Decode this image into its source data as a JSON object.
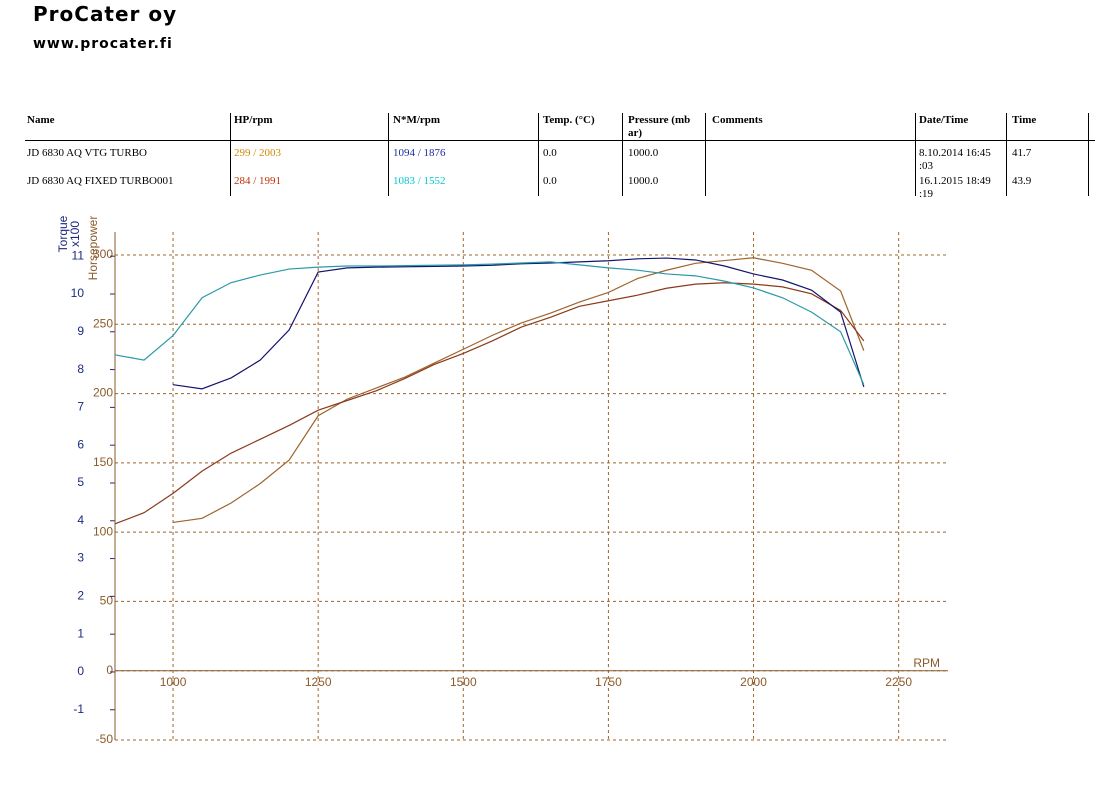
{
  "header": {
    "title": "ProCater oy",
    "url": "www.procater.fi"
  },
  "table": {
    "columns": [
      "Name",
      "HP/rpm",
      "N*M/rpm",
      "Temp. (°C)",
      "Pressure (mb ar)",
      "Comments",
      "Date/Time",
      "Time"
    ],
    "rows": [
      [
        "JD 6830 AQ VTG TURBO",
        "299 / 2003",
        "1094 / 1876",
        "0.0",
        "1000.0",
        "",
        "8.10.2014 16:45 :03",
        "41.7"
      ],
      [
        "JD 6830 AQ FIXED TURBO001",
        "284 / 1991",
        "1083 / 1552",
        "0.0",
        "1000.0",
        "",
        "16.1.2015 18:49 :19",
        "43.9"
      ]
    ]
  },
  "chart_data": {
    "type": "line",
    "xlabel": "RPM",
    "ylabel": "Horsepower",
    "y2label": "Torque",
    "y2label_multiplier": "x100",
    "xlim": [
      900,
      2335
    ],
    "xticks": [
      1000,
      1250,
      1500,
      1750,
      2000,
      2250
    ],
    "ylim": [
      -50,
      316.6
    ],
    "yticks": [
      -50,
      0,
      50,
      100,
      150,
      200,
      250,
      300
    ],
    "y2lim": [
      -1.8,
      11.64
    ],
    "y2ticks": [
      -1,
      0,
      1,
      2,
      3,
      4,
      5,
      6,
      7,
      8,
      9,
      10,
      11
    ],
    "grid": true,
    "x": [
      900,
      950,
      1000,
      1050,
      1100,
      1150,
      1200,
      1250,
      1300,
      1350,
      1400,
      1450,
      1500,
      1550,
      1600,
      1650,
      1700,
      1750,
      1800,
      1850,
      1900,
      1950,
      2000,
      2050,
      2100,
      2150,
      2190
    ],
    "series": [
      {
        "color": "#a0642a",
        "values": [
          null,
          null,
          107,
          110,
          121,
          135,
          152,
          184,
          196,
          204,
          212,
          222,
          232,
          242,
          251,
          258,
          266,
          273,
          283,
          289,
          294,
          296,
          298,
          294,
          289,
          274,
          231
        ]
      },
      {
        "color": "#8b3a1a",
        "values": [
          106,
          114,
          128,
          144,
          157,
          167,
          177,
          188,
          195,
          202,
          211,
          221,
          229,
          238,
          248,
          255,
          263,
          267,
          271,
          276,
          279,
          280,
          279,
          277,
          272,
          260,
          238
        ]
      },
      {
        "color": "#14146e",
        "axis": "y2",
        "values": [
          null,
          null,
          7.6,
          7.49,
          7.78,
          8.25,
          9.05,
          10.58,
          10.69,
          10.71,
          10.72,
          10.73,
          10.74,
          10.76,
          10.8,
          10.82,
          10.85,
          10.88,
          10.93,
          10.95,
          10.9,
          10.74,
          10.53,
          10.37,
          10.1,
          9.52,
          7.54
        ]
      },
      {
        "color": "#2a9aa8",
        "axis": "y2",
        "values": [
          8.39,
          8.25,
          8.9,
          9.9,
          10.3,
          10.5,
          10.66,
          10.71,
          10.74,
          10.74,
          10.75,
          10.76,
          10.77,
          10.79,
          10.82,
          10.85,
          10.77,
          10.69,
          10.63,
          10.53,
          10.48,
          10.34,
          10.16,
          9.9,
          9.52,
          9.0,
          7.6
        ]
      }
    ]
  }
}
